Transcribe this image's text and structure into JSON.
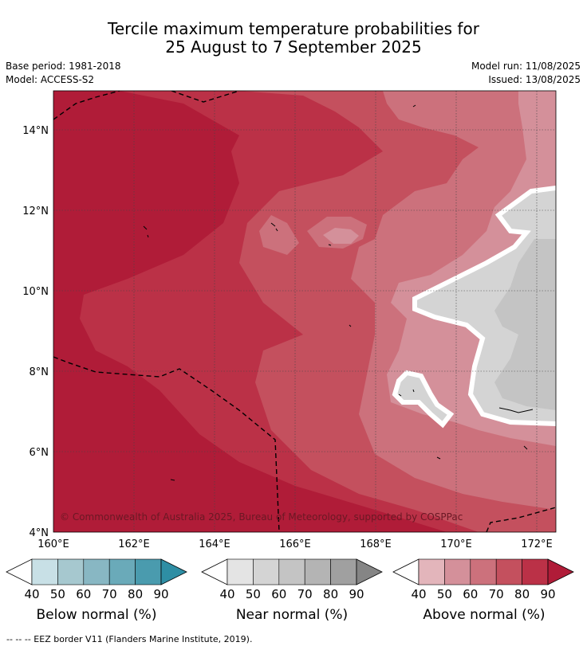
{
  "title": {
    "line1": "Tercile maximum temperature probabilities for",
    "line2": "25 August to 7 September 2025"
  },
  "info": {
    "base_period": "Base period: 1981-2018",
    "model": "Model: ACCESS-S2",
    "model_run": "Model run: 11/08/2025",
    "issued": "Issued: 13/08/2025"
  },
  "map": {
    "lat_labels": [
      "14°N",
      "12°N",
      "10°N",
      "8°N",
      "6°N",
      "4°N"
    ],
    "lon_labels": [
      "160°E",
      "162°E",
      "164°E",
      "166°E",
      "168°E",
      "170°E",
      "172°E"
    ],
    "copyright": "© Commonwealth of Australia 2025, Bureau of Meteorology, supported by COSPPac"
  },
  "legends": [
    {
      "label": "Below normal (%)",
      "ticks": [
        "40",
        "50",
        "60",
        "70",
        "80",
        "90"
      ],
      "colors": [
        "#ffffff",
        "#c8e0e6",
        "#a6c8cf",
        "#88b7c3",
        "#6aaab9",
        "#4a9bae",
        "#2e8ea4"
      ]
    },
    {
      "label": "Near normal (%)",
      "ticks": [
        "40",
        "50",
        "60",
        "70",
        "80",
        "90"
      ],
      "colors": [
        "#ffffff",
        "#e4e4e4",
        "#d4d4d4",
        "#c4c4c4",
        "#b4b4b4",
        "#a0a0a0",
        "#858585"
      ]
    },
    {
      "label": "Above normal (%)",
      "ticks": [
        "40",
        "50",
        "60",
        "70",
        "80",
        "90"
      ],
      "colors": [
        "#ffffff",
        "#e3b5bb",
        "#d4909a",
        "#cc717c",
        "#c4505e",
        "#bb3147",
        "#b01c38"
      ]
    }
  ],
  "footnote": "--  --  -- EEZ border V11 (Flanders Marine Institute, 2019)."
}
